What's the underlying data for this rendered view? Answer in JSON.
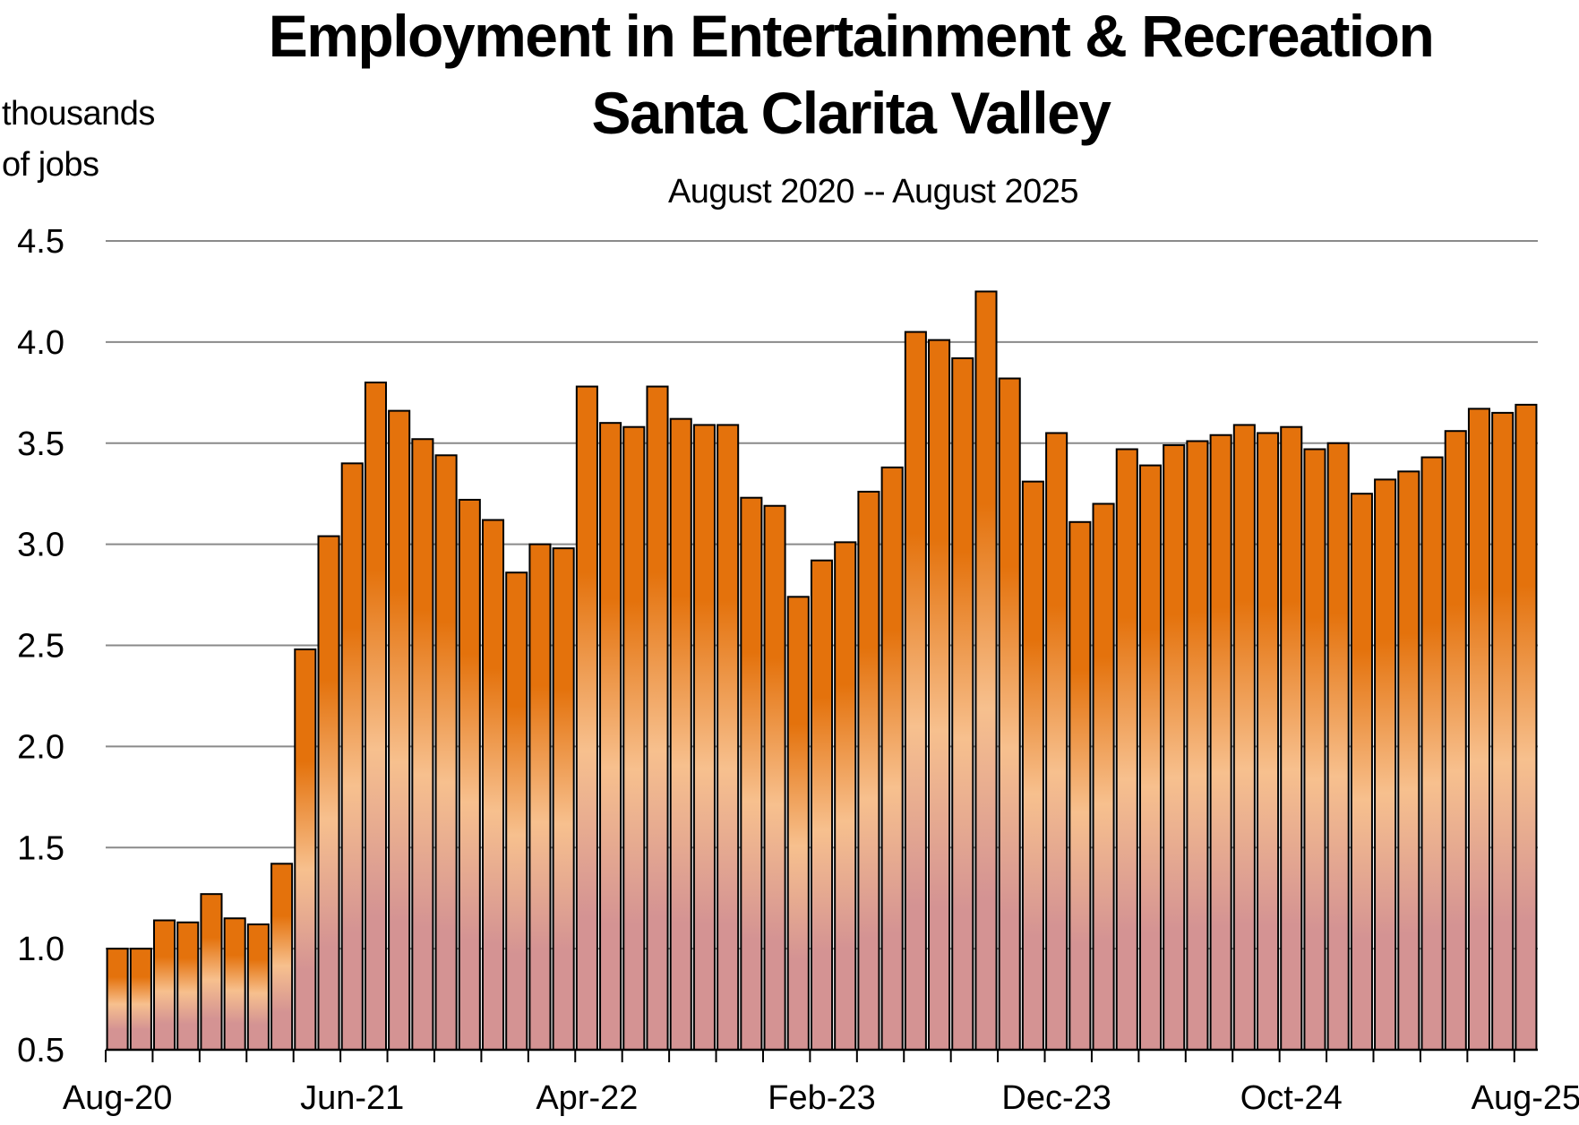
{
  "chart_data": {
    "type": "bar",
    "title": "Employment in Entertainment & Recreation",
    "subtitle_line2": "Santa Clarita Valley",
    "date_range": "August 2020 -- August 2025",
    "ylabel_line1": "thousands",
    "ylabel_line2": "of jobs",
    "ylim": [
      0.5,
      4.5
    ],
    "yticks": [
      "0.5",
      "1.0",
      "1.5",
      "2.0",
      "2.5",
      "3.0",
      "3.5",
      "4.0",
      "4.5"
    ],
    "grid": true,
    "x_tick_labels": [
      "Aug-20",
      "Jun-21",
      "Apr-22",
      "Feb-23",
      "Dec-23",
      "Oct-24",
      "Aug-25"
    ],
    "categories": [
      "Aug-20",
      "Sep-20",
      "Oct-20",
      "Nov-20",
      "Dec-20",
      "Jan-21",
      "Feb-21",
      "Mar-21",
      "Apr-21",
      "May-21",
      "Jun-21",
      "Jul-21",
      "Aug-21",
      "Sep-21",
      "Oct-21",
      "Nov-21",
      "Dec-21",
      "Jan-22",
      "Feb-22",
      "Mar-22",
      "Apr-22",
      "May-22",
      "Jun-22",
      "Jul-22",
      "Aug-22",
      "Sep-22",
      "Oct-22",
      "Nov-22",
      "Dec-22",
      "Jan-23",
      "Feb-23",
      "Mar-23",
      "Apr-23",
      "May-23",
      "Jun-23",
      "Jul-23",
      "Aug-23",
      "Sep-23",
      "Oct-23",
      "Nov-23",
      "Dec-23",
      "Jan-24",
      "Feb-24",
      "Mar-24",
      "Apr-24",
      "May-24",
      "Jun-24",
      "Jul-24",
      "Aug-24",
      "Sep-24",
      "Oct-24",
      "Nov-24",
      "Dec-24",
      "Jan-25",
      "Feb-25",
      "Mar-25",
      "Apr-25",
      "May-25",
      "Jun-25",
      "Jul-25",
      "Aug-25"
    ],
    "values": [
      1.0,
      1.0,
      1.14,
      1.13,
      1.27,
      1.15,
      1.12,
      1.42,
      2.48,
      3.04,
      3.4,
      3.8,
      3.66,
      3.52,
      3.44,
      3.22,
      3.12,
      2.86,
      3.0,
      2.98,
      3.78,
      3.6,
      3.58,
      3.78,
      3.62,
      3.59,
      3.59,
      3.23,
      3.19,
      2.74,
      2.92,
      3.01,
      3.26,
      3.38,
      4.05,
      4.01,
      3.92,
      4.25,
      3.82,
      3.31,
      3.55,
      3.11,
      3.2,
      3.47,
      3.39,
      3.49,
      3.51,
      3.54,
      3.59,
      3.55,
      3.58,
      3.47,
      3.5,
      3.25,
      3.32,
      3.36,
      3.43,
      3.56,
      3.67,
      3.65,
      3.69
    ],
    "bar_colors": {
      "top": "#e4720c",
      "mid": "#f7c08e",
      "bottom": "#d49393",
      "outline": "#000000"
    },
    "grid_color": "#8a8a8a"
  }
}
